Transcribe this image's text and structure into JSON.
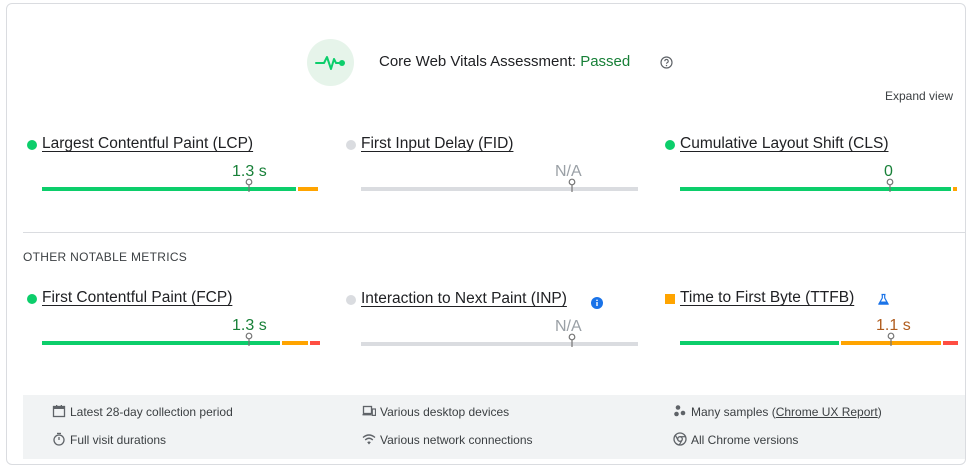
{
  "assessment": {
    "title_prefix": "Core Web Vitals Assessment: ",
    "status": "Passed",
    "status_color": "#188038",
    "icon": "pulse-icon",
    "help_icon": "help-circle-icon"
  },
  "expand_view_label": "Expand view",
  "core_metrics": [
    {
      "name": "Largest Contentful Paint (LCP)",
      "value": "1.3 s",
      "rating": "good",
      "dot_color": "#0cce6b",
      "value_color": "#188038"
    },
    {
      "name": "First Input Delay (FID)",
      "value": "N/A",
      "rating": "none",
      "dot_color": "#dadce0",
      "value_color": "#9aa0a6"
    },
    {
      "name": "Cumulative Layout Shift (CLS)",
      "value": "0",
      "rating": "good",
      "dot_color": "#0cce6b",
      "value_color": "#188038"
    }
  ],
  "other_section_label": "OTHER NOTABLE METRICS",
  "other_metrics": [
    {
      "name": "First Contentful Paint (FCP)",
      "value": "1.3 s",
      "rating": "good",
      "dot_color": "#0cce6b",
      "value_color": "#188038"
    },
    {
      "name": "Interaction to Next Paint (INP)",
      "value": "N/A",
      "rating": "none",
      "dot_color": "#dadce0",
      "value_color": "#9aa0a6",
      "icon": "info-icon"
    },
    {
      "name": "Time to First Byte (TTFB)",
      "value": "1.1 s",
      "rating": "needs-improvement",
      "dot_color": "#ffa400",
      "value_color": "#b05c1d",
      "icon": "flask-icon"
    }
  ],
  "footer": {
    "items": [
      {
        "icon": "calendar-icon",
        "label": "Latest 28-day collection period"
      },
      {
        "icon": "devices-icon",
        "label": "Various desktop devices"
      },
      {
        "icon": "samples-icon",
        "label_prefix": "Many samples (",
        "link": "Chrome UX Report",
        "label_suffix": ")"
      },
      {
        "icon": "timer-icon",
        "label": "Full visit durations"
      },
      {
        "icon": "wifi-icon",
        "label": "Various network connections"
      },
      {
        "icon": "chrome-icon",
        "label": "All Chrome versions"
      }
    ]
  }
}
